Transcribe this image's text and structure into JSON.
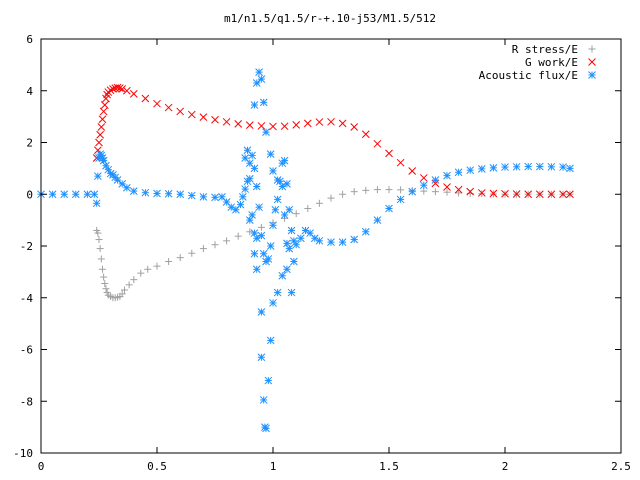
{
  "chart_data": {
    "type": "scatter",
    "title": "m1/n1.5/q1.5/r-+.10-j53/M1.5/512",
    "xlabel": "",
    "ylabel": "",
    "xlim": [
      0,
      2.5
    ],
    "ylim": [
      -10,
      6
    ],
    "xticks": [
      "0",
      "0.5",
      "1",
      "1.5",
      "2",
      "2.5"
    ],
    "yticks": [
      "6",
      "4",
      "2",
      "0",
      "-2",
      "-4",
      "-6",
      "-8",
      "-10"
    ],
    "grid": false,
    "legend_position": "top-right",
    "series": [
      {
        "name": "R stress/E",
        "marker": "+",
        "color": "#a0a0a0",
        "points": [
          [
            0.24,
            -1.4
          ],
          [
            0.245,
            -1.5
          ],
          [
            0.25,
            -1.75
          ],
          [
            0.255,
            -2.1
          ],
          [
            0.26,
            -2.5
          ],
          [
            0.265,
            -2.9
          ],
          [
            0.27,
            -3.2
          ],
          [
            0.275,
            -3.45
          ],
          [
            0.28,
            -3.65
          ],
          [
            0.285,
            -3.8
          ],
          [
            0.29,
            -3.9
          ],
          [
            0.3,
            -3.95
          ],
          [
            0.31,
            -4.0
          ],
          [
            0.32,
            -4.0
          ],
          [
            0.33,
            -3.98
          ],
          [
            0.34,
            -3.95
          ],
          [
            0.35,
            -3.85
          ],
          [
            0.36,
            -3.7
          ],
          [
            0.38,
            -3.5
          ],
          [
            0.4,
            -3.3
          ],
          [
            0.43,
            -3.05
          ],
          [
            0.46,
            -2.9
          ],
          [
            0.5,
            -2.78
          ],
          [
            0.55,
            -2.6
          ],
          [
            0.6,
            -2.45
          ],
          [
            0.65,
            -2.28
          ],
          [
            0.7,
            -2.1
          ],
          [
            0.75,
            -1.95
          ],
          [
            0.8,
            -1.8
          ],
          [
            0.85,
            -1.62
          ],
          [
            0.9,
            -1.45
          ],
          [
            0.95,
            -1.28
          ],
          [
            1.0,
            -1.1
          ],
          [
            1.05,
            -0.93
          ],
          [
            1.1,
            -0.75
          ],
          [
            1.15,
            -0.55
          ],
          [
            1.2,
            -0.35
          ],
          [
            1.25,
            -0.15
          ],
          [
            1.3,
            0.0
          ],
          [
            1.35,
            0.1
          ],
          [
            1.4,
            0.15
          ],
          [
            1.45,
            0.18
          ],
          [
            1.5,
            0.18
          ],
          [
            1.55,
            0.17
          ],
          [
            1.6,
            0.15
          ],
          [
            1.65,
            0.12
          ],
          [
            1.7,
            0.1
          ],
          [
            1.75,
            0.08
          ],
          [
            1.8,
            0.05
          ],
          [
            1.85,
            0.03
          ],
          [
            1.9,
            0.02
          ],
          [
            1.95,
            0.01
          ],
          [
            2.0,
            0.0
          ],
          [
            2.05,
            0.0
          ],
          [
            2.1,
            0.0
          ],
          [
            2.15,
            0.0
          ],
          [
            2.2,
            0.0
          ],
          [
            2.25,
            0.0
          ],
          [
            2.28,
            0.0
          ]
        ]
      },
      {
        "name": "G work/E",
        "marker": "x",
        "color": "#ff0000",
        "points": [
          [
            0.24,
            1.4
          ],
          [
            0.245,
            1.7
          ],
          [
            0.25,
            2.0
          ],
          [
            0.255,
            2.3
          ],
          [
            0.26,
            2.6
          ],
          [
            0.265,
            2.9
          ],
          [
            0.27,
            3.2
          ],
          [
            0.275,
            3.45
          ],
          [
            0.28,
            3.7
          ],
          [
            0.285,
            3.85
          ],
          [
            0.29,
            3.95
          ],
          [
            0.3,
            4.02
          ],
          [
            0.31,
            4.07
          ],
          [
            0.32,
            4.1
          ],
          [
            0.33,
            4.12
          ],
          [
            0.34,
            4.1
          ],
          [
            0.35,
            4.07
          ],
          [
            0.37,
            4.0
          ],
          [
            0.4,
            3.88
          ],
          [
            0.45,
            3.7
          ],
          [
            0.5,
            3.5
          ],
          [
            0.55,
            3.35
          ],
          [
            0.6,
            3.2
          ],
          [
            0.65,
            3.08
          ],
          [
            0.7,
            2.98
          ],
          [
            0.75,
            2.88
          ],
          [
            0.8,
            2.8
          ],
          [
            0.85,
            2.72
          ],
          [
            0.9,
            2.67
          ],
          [
            0.95,
            2.64
          ],
          [
            1.0,
            2.62
          ],
          [
            1.05,
            2.63
          ],
          [
            1.1,
            2.68
          ],
          [
            1.15,
            2.74
          ],
          [
            1.2,
            2.79
          ],
          [
            1.25,
            2.8
          ],
          [
            1.3,
            2.74
          ],
          [
            1.35,
            2.6
          ],
          [
            1.4,
            2.32
          ],
          [
            1.45,
            1.95
          ],
          [
            1.5,
            1.58
          ],
          [
            1.55,
            1.22
          ],
          [
            1.6,
            0.9
          ],
          [
            1.65,
            0.63
          ],
          [
            1.7,
            0.42
          ],
          [
            1.75,
            0.28
          ],
          [
            1.8,
            0.18
          ],
          [
            1.85,
            0.1
          ],
          [
            1.9,
            0.05
          ],
          [
            1.95,
            0.03
          ],
          [
            2.0,
            0.02
          ],
          [
            2.05,
            0.01
          ],
          [
            2.1,
            0.0
          ],
          [
            2.15,
            0.0
          ],
          [
            2.2,
            0.0
          ],
          [
            2.25,
            0.0
          ],
          [
            2.28,
            0.0
          ]
        ]
      },
      {
        "name": "Acoustic flux/E",
        "marker": "*",
        "color": "#1e90ff",
        "points": [
          [
            0.0,
            0.0
          ],
          [
            0.05,
            0.0
          ],
          [
            0.1,
            0.0
          ],
          [
            0.15,
            0.0
          ],
          [
            0.2,
            0.0
          ],
          [
            0.23,
            0.0
          ],
          [
            0.24,
            -0.35
          ],
          [
            0.245,
            0.7
          ],
          [
            0.25,
            1.4
          ],
          [
            0.255,
            1.55
          ],
          [
            0.26,
            1.5
          ],
          [
            0.265,
            1.4
          ],
          [
            0.27,
            1.3
          ],
          [
            0.28,
            1.1
          ],
          [
            0.29,
            0.95
          ],
          [
            0.3,
            0.8
          ],
          [
            0.31,
            0.75
          ],
          [
            0.32,
            0.65
          ],
          [
            0.33,
            0.55
          ],
          [
            0.35,
            0.4
          ],
          [
            0.37,
            0.25
          ],
          [
            0.4,
            0.12
          ],
          [
            0.45,
            0.06
          ],
          [
            0.5,
            0.03
          ],
          [
            0.55,
            0.02
          ],
          [
            0.6,
            0.0
          ],
          [
            0.65,
            -0.05
          ],
          [
            0.7,
            -0.1
          ],
          [
            0.75,
            -0.12
          ],
          [
            0.78,
            -0.1
          ],
          [
            0.8,
            -0.3
          ],
          [
            0.82,
            -0.5
          ],
          [
            0.84,
            -0.6
          ],
          [
            0.86,
            -0.4
          ],
          [
            0.87,
            -0.1
          ],
          [
            0.88,
            0.2
          ],
          [
            0.89,
            0.5
          ],
          [
            0.9,
            1.2
          ],
          [
            0.91,
            1.5
          ],
          [
            0.92,
            1.0
          ],
          [
            0.93,
            0.3
          ],
          [
            0.94,
            -0.5
          ],
          [
            0.95,
            -1.6
          ],
          [
            0.96,
            -2.3
          ],
          [
            0.97,
            -2.6
          ],
          [
            0.98,
            -2.5
          ],
          [
            0.99,
            -2.0
          ],
          [
            1.0,
            -1.2
          ],
          [
            1.01,
            -0.6
          ],
          [
            1.02,
            -0.2
          ],
          [
            1.03,
            0.5
          ],
          [
            1.04,
            1.2
          ],
          [
            1.05,
            1.3
          ],
          [
            1.06,
            0.4
          ],
          [
            1.07,
            -0.6
          ],
          [
            1.08,
            -1.4
          ],
          [
            1.09,
            -1.8
          ],
          [
            1.1,
            -1.95
          ],
          [
            1.12,
            -1.7
          ],
          [
            1.14,
            -1.4
          ],
          [
            1.16,
            -1.5
          ],
          [
            1.18,
            -1.7
          ],
          [
            1.2,
            -1.8
          ],
          [
            1.25,
            -1.85
          ],
          [
            1.3,
            -1.85
          ],
          [
            1.35,
            -1.75
          ],
          [
            1.4,
            -1.45
          ],
          [
            1.45,
            -1.0
          ],
          [
            1.5,
            -0.55
          ],
          [
            1.55,
            -0.2
          ],
          [
            1.6,
            0.1
          ],
          [
            1.65,
            0.35
          ],
          [
            1.7,
            0.55
          ],
          [
            1.75,
            0.72
          ],
          [
            1.8,
            0.85
          ],
          [
            1.85,
            0.93
          ],
          [
            1.9,
            0.98
          ],
          [
            1.95,
            1.02
          ],
          [
            2.0,
            1.05
          ],
          [
            2.05,
            1.06
          ],
          [
            2.1,
            1.07
          ],
          [
            2.15,
            1.07
          ],
          [
            2.2,
            1.06
          ],
          [
            2.25,
            1.05
          ],
          [
            2.28,
            1.0
          ],
          [
            0.92,
            -2.3
          ],
          [
            0.93,
            -2.9
          ],
          [
            0.95,
            -4.55
          ],
          [
            0.95,
            -6.3
          ],
          [
            0.96,
            -7.95
          ],
          [
            0.965,
            -9.0
          ],
          [
            0.97,
            -9.05
          ],
          [
            0.98,
            -7.2
          ],
          [
            0.99,
            -5.65
          ],
          [
            1.0,
            -4.2
          ],
          [
            1.02,
            -3.8
          ],
          [
            1.04,
            -3.15
          ],
          [
            1.06,
            -2.9
          ],
          [
            1.08,
            -3.8
          ],
          [
            1.09,
            -2.6
          ],
          [
            0.92,
            3.45
          ],
          [
            0.93,
            4.3
          ],
          [
            0.94,
            4.72
          ],
          [
            0.95,
            4.45
          ],
          [
            0.96,
            3.55
          ],
          [
            0.97,
            2.4
          ],
          [
            0.99,
            1.55
          ],
          [
            1.0,
            0.9
          ],
          [
            1.02,
            0.55
          ],
          [
            1.04,
            0.3
          ],
          [
            1.05,
            -0.8
          ],
          [
            1.06,
            -1.9
          ],
          [
            1.07,
            -2.1
          ],
          [
            0.88,
            1.4
          ],
          [
            0.89,
            1.7
          ],
          [
            0.9,
            0.6
          ],
          [
            0.91,
            -0.8
          ],
          [
            0.92,
            -1.5
          ],
          [
            0.93,
            -1.7
          ],
          [
            0.9,
            -1.0
          ]
        ]
      }
    ]
  }
}
